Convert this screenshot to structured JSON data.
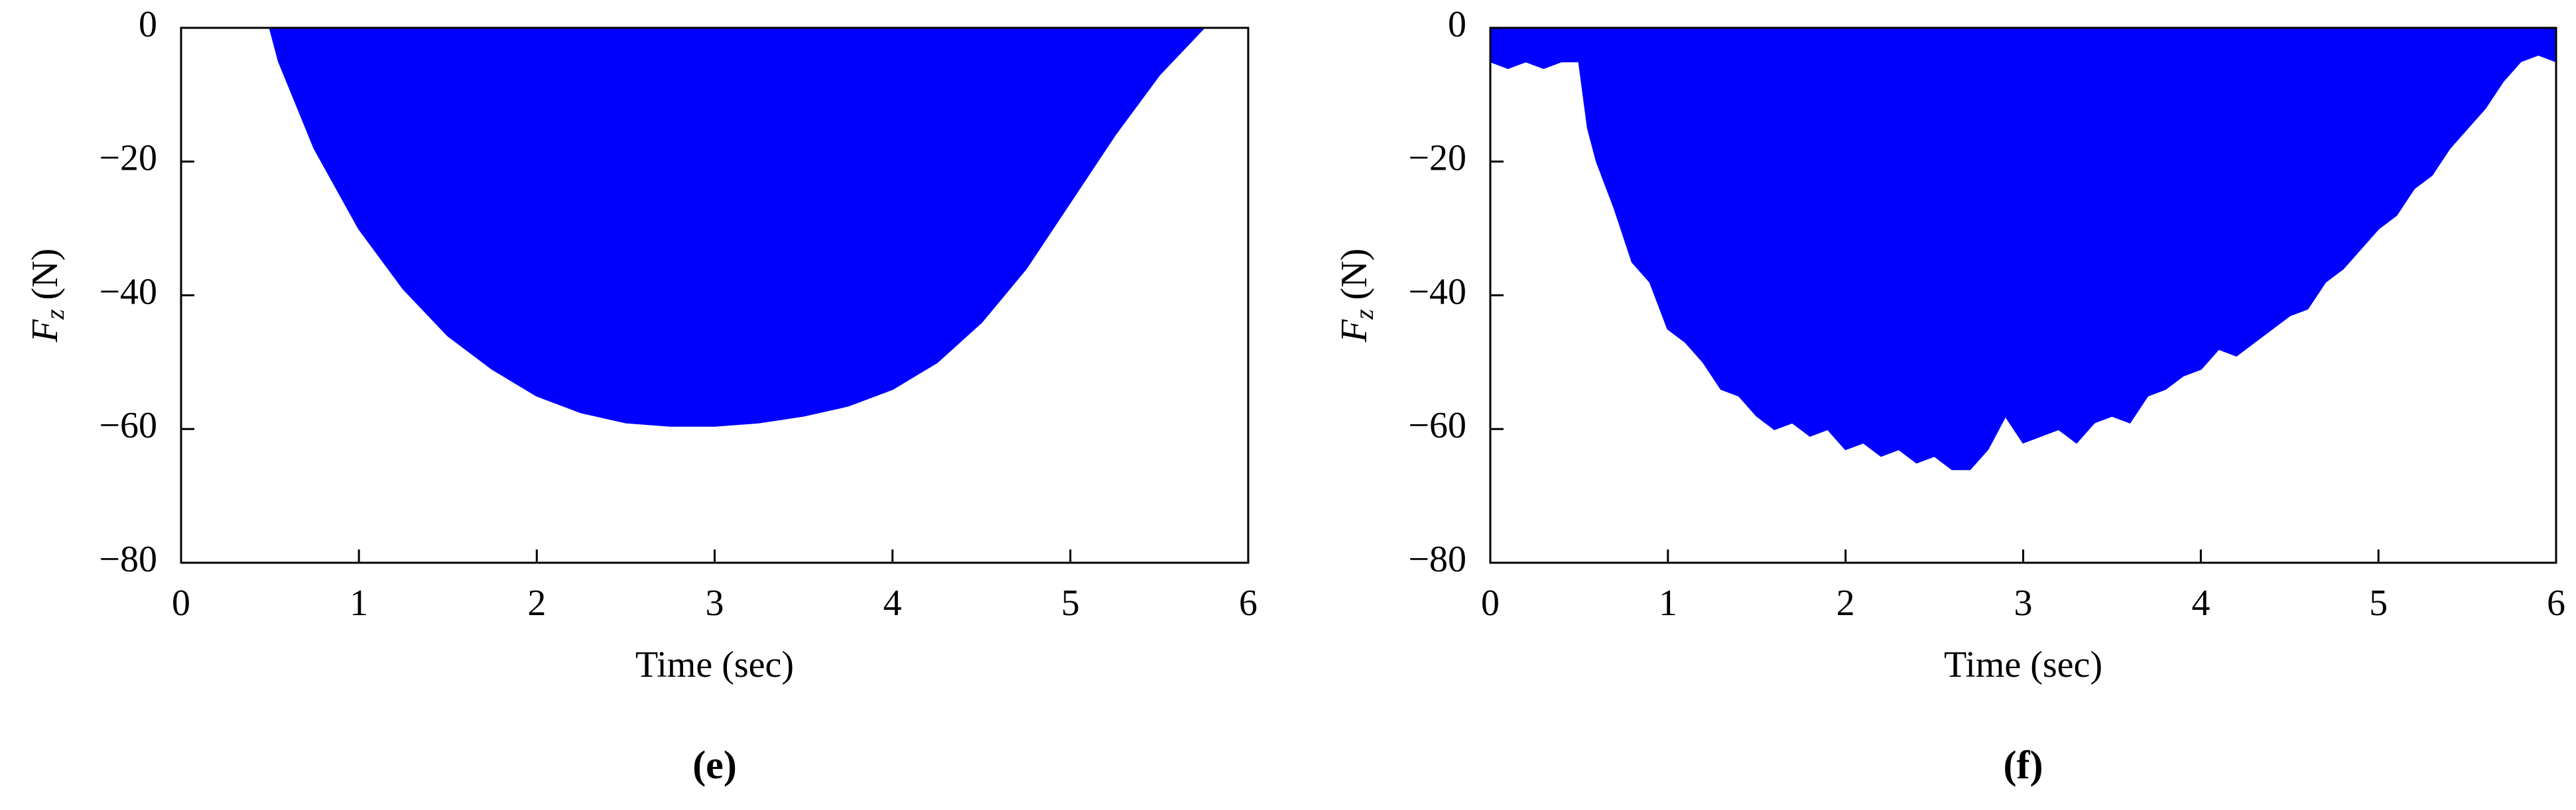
{
  "chart_data": [
    {
      "type": "area",
      "caption": "(e)",
      "xlabel": "Time (sec)",
      "ylabel_symbol": "F",
      "ylabel_subscript": "z",
      "ylabel_unit": "(N)",
      "color": "#0000ff",
      "xlim": [
        0,
        6
      ],
      "xticks": [
        0,
        1,
        2,
        3,
        4,
        5,
        6
      ],
      "ylim": [
        -80,
        0
      ],
      "yticks": [
        {
          "value": -80,
          "label": "−80"
        },
        {
          "value": -60,
          "label": "−60"
        },
        {
          "value": -40,
          "label": "−40"
        },
        {
          "value": -20,
          "label": "−20"
        },
        0
      ],
      "x": [
        0,
        0.25,
        0.5,
        0.55,
        0.75,
        1.0,
        1.25,
        1.5,
        1.75,
        2.0,
        2.25,
        2.5,
        2.75,
        3.0,
        3.25,
        3.5,
        3.75,
        4.0,
        4.25,
        4.5,
        4.75,
        5.0,
        5.25,
        5.5,
        5.75,
        6.0
      ],
      "values": [
        0,
        0,
        0,
        -5,
        -18,
        -30,
        -39,
        -46,
        -51,
        -55,
        -57.5,
        -59,
        -59.5,
        -59.5,
        -59,
        -58,
        -56.5,
        -54,
        -50,
        -44,
        -36,
        -26,
        -16,
        -7,
        0,
        0
      ]
    },
    {
      "type": "area",
      "caption": "(f)",
      "xlabel": "Time (sec)",
      "ylabel_symbol": "F",
      "ylabel_subscript": "z",
      "ylabel_unit": "(N)",
      "color": "#0000ff",
      "xlim": [
        0,
        6
      ],
      "xticks": [
        0,
        1,
        2,
        3,
        4,
        5,
        6
      ],
      "ylim": [
        -80,
        0
      ],
      "yticks": [
        {
          "value": -80,
          "label": "−80"
        },
        {
          "value": -60,
          "label": "−60"
        },
        {
          "value": -40,
          "label": "−40"
        },
        {
          "value": -20,
          "label": "−20"
        },
        0
      ],
      "x": [
        0,
        0.1,
        0.2,
        0.3,
        0.4,
        0.5,
        0.55,
        0.6,
        0.7,
        0.8,
        0.9,
        1.0,
        1.1,
        1.2,
        1.3,
        1.4,
        1.5,
        1.6,
        1.7,
        1.8,
        1.9,
        2.0,
        2.1,
        2.2,
        2.3,
        2.4,
        2.5,
        2.6,
        2.7,
        2.8,
        2.9,
        3.0,
        3.1,
        3.2,
        3.3,
        3.4,
        3.5,
        3.6,
        3.7,
        3.8,
        3.9,
        4.0,
        4.1,
        4.2,
        4.3,
        4.4,
        4.5,
        4.6,
        4.7,
        4.8,
        4.9,
        5.0,
        5.1,
        5.2,
        5.3,
        5.4,
        5.5,
        5.6,
        5.7,
        5.8,
        5.9,
        6.0
      ],
      "values": [
        -5,
        -6,
        -5,
        -6,
        -5,
        -5,
        -15,
        -20,
        -27,
        -35,
        -38,
        -45,
        -47,
        -50,
        -54,
        -55,
        -58,
        -60,
        -59,
        -61,
        -60,
        -63,
        -62,
        -64,
        -63,
        -65,
        -64,
        -66,
        -66,
        -63,
        -58,
        -62,
        -61,
        -60,
        -62,
        -59,
        -58,
        -59,
        -55,
        -54,
        -52,
        -51,
        -48,
        -49,
        -47,
        -45,
        -43,
        -42,
        -38,
        -36,
        -33,
        -30,
        -28,
        -24,
        -22,
        -18,
        -15,
        -12,
        -8,
        -5,
        -4,
        -5
      ]
    }
  ]
}
